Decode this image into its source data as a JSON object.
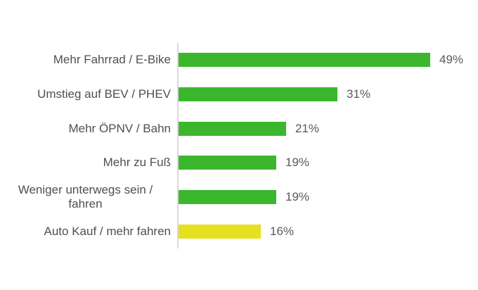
{
  "chart_data": {
    "type": "bar",
    "orientation": "horizontal",
    "title": "",
    "xlabel": "",
    "ylabel": "",
    "categories": [
      "Mehr Fahrrad / E-Bike",
      "Umstieg auf BEV / PHEV",
      "Mehr ÖPNV / Bahn",
      "Mehr zu Fuß",
      "Weniger unterwegs sein / fahren",
      "Auto Kauf / mehr fahren"
    ],
    "values": [
      49,
      31,
      21,
      19,
      19,
      16
    ],
    "value_labels": [
      "49%",
      "31%",
      "21%",
      "19%",
      "19%",
      "16%"
    ],
    "bar_colors": [
      "#3cb72d",
      "#3cb72d",
      "#3cb72d",
      "#3cb72d",
      "#3cb72d",
      "#e6e01e"
    ],
    "colors": {
      "bar_green": "#3cb72d",
      "bar_yellow": "#e6e01e",
      "axis_line": "#d9d9d9",
      "category_label_text": "#4f4f4f",
      "value_label_text": "#595959",
      "background": "#ffffff"
    },
    "layout": {
      "legend": "none",
      "gridlines": false,
      "value_axis_visible": false,
      "category_axis_line_visible": true,
      "data_labels": "outside-end"
    }
  }
}
